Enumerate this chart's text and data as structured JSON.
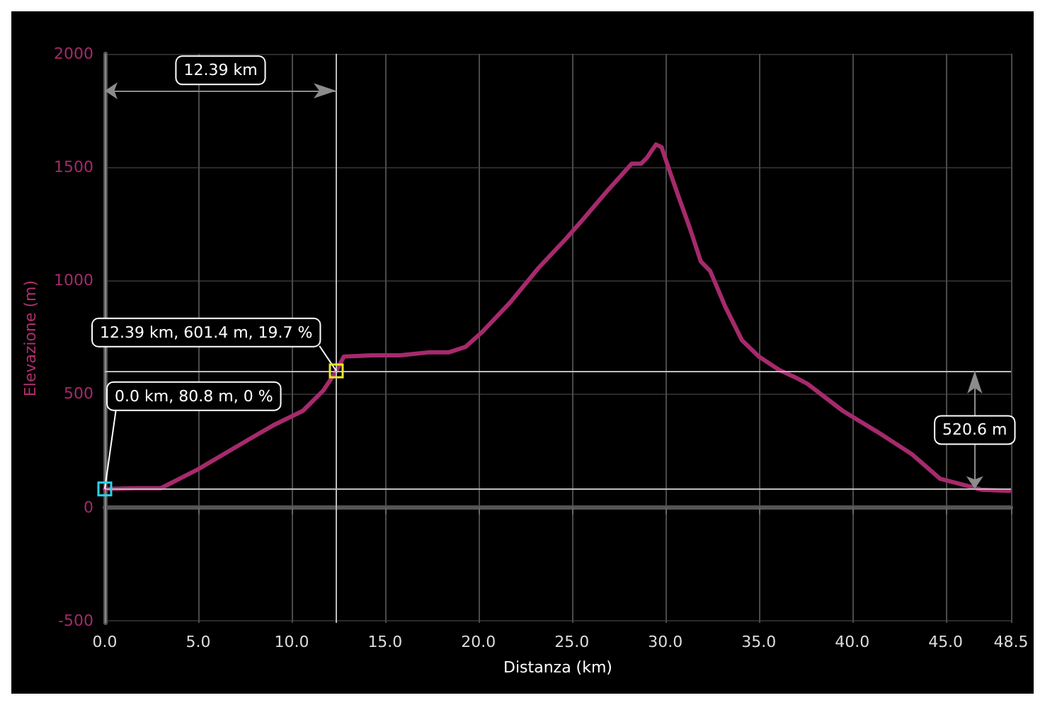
{
  "chart_data": {
    "type": "line",
    "xlabel": "Distanza (km)",
    "ylabel": "Elevazione (m)",
    "x": [
      0,
      1.7,
      3.0,
      5.0,
      7.6,
      9.1,
      10.6,
      11.7,
      12.39,
      12.8,
      14.3,
      15.8,
      17.3,
      18.4,
      19.3,
      20.2,
      21.7,
      23.2,
      24.7,
      25.6,
      26.9,
      28.2,
      28.7,
      29.0,
      29.5,
      29.8,
      30.2,
      30.7,
      31.3,
      31.9,
      32.4,
      33.2,
      34.1,
      35.0,
      36.1,
      36.9,
      37.6,
      39.5,
      41.3,
      43.2,
      44.7,
      45.8,
      46.9,
      48.4
    ],
    "series": [
      {
        "color": "#a62a6c",
        "values": [
          80.8,
          84,
          84,
          168,
          294,
          365,
          425,
          515,
          601.4,
          665,
          670,
          670,
          683,
          683,
          707,
          773,
          904,
          1054,
          1186,
          1270,
          1396,
          1515,
          1515,
          1540,
          1600,
          1588,
          1490,
          1372,
          1234,
          1084,
          1042,
          886,
          737,
          665,
          605,
          575,
          545,
          425,
          335,
          234,
          126,
          102,
          78,
          72
        ]
      }
    ],
    "xlim": [
      0,
      48.5
    ],
    "xticks": [
      {
        "value": 0,
        "label": "0.0"
      },
      {
        "value": 5,
        "label": "5.0"
      },
      {
        "value": 10,
        "label": "10.0"
      },
      {
        "value": 15,
        "label": "15.0"
      },
      {
        "value": 20,
        "label": "20.0"
      },
      {
        "value": 25,
        "label": "25.0"
      },
      {
        "value": 30,
        "label": "30.0"
      },
      {
        "value": 35,
        "label": "35.0"
      },
      {
        "value": 40,
        "label": "40.0"
      },
      {
        "value": 45,
        "label": "45.0"
      },
      48.5
    ],
    "ylim": [
      -510,
      2000
    ],
    "yticks": [
      -500,
      0,
      500,
      1000,
      1500,
      2000
    ],
    "grid": true,
    "marker": "none",
    "line_style": "solid",
    "ref_lines": [
      {
        "axis": "x",
        "value": 0,
        "color": "#8a8a8a"
      },
      {
        "axis": "x",
        "value": 12.39,
        "color": "#bdbdbd"
      },
      {
        "axis": "y",
        "value": 80.8,
        "color": "#bdbdbd"
      },
      {
        "axis": "y",
        "value": 601.4,
        "color": "#bdbdbd"
      }
    ],
    "annotations": [
      "12.39 km",
      {
        "text": "0.0 km, 80.8 m, 0 %",
        "x": 0,
        "y": 80.8
      },
      {
        "text": "12.39 km, 601.4 m, 19.7 %",
        "x": 12.39,
        "y": 601.4
      },
      "520.6 m"
    ]
  }
}
